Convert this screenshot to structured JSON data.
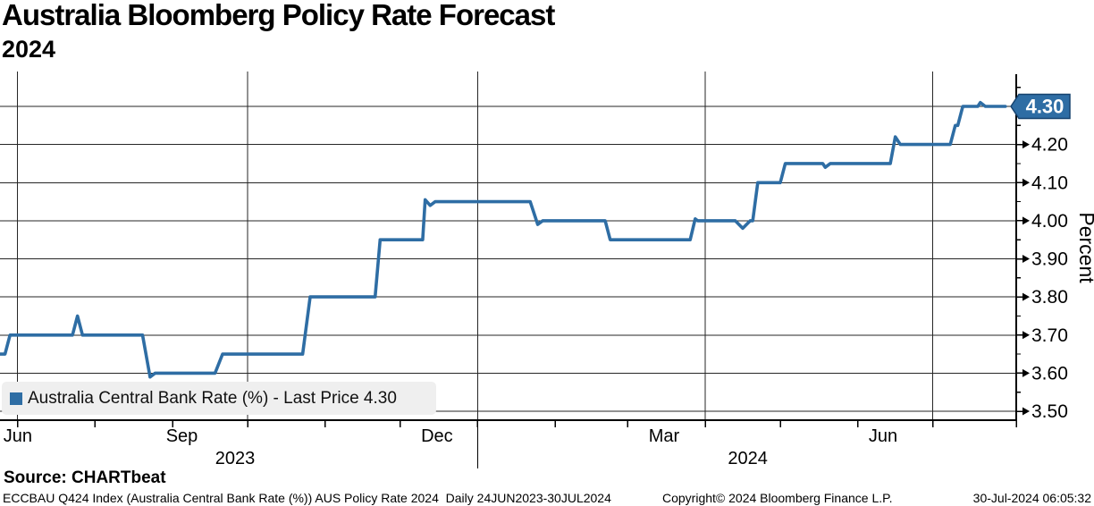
{
  "header": {
    "title": "Australia Bloomberg Policy Rate Forecast",
    "subtitle": "2024"
  },
  "legend": {
    "label": "Australia Central Bank Rate (%) - Last Price 4.30"
  },
  "footer": {
    "source": "Source: CHARTbeat",
    "security_info": "ECCBAU Q424 Index (Australia Central Bank Rate (%)) AUS Policy Rate 2024  Daily 24JUN2023-30JUL2024",
    "copyright": "Copyright© 2024 Bloomberg Finance L.P.",
    "timestamp": "30-Jul-2024 06:05:32"
  },
  "chart_data": {
    "type": "line",
    "title": "Australia Bloomberg Policy Rate Forecast 2024",
    "series_name": "Australia Central Bank Rate (%)",
    "last_price": "4.30",
    "flag_value": 4.3,
    "ylabel": "Percent",
    "line_color": "#2e6da4",
    "flag_border_color": "#16436f",
    "ylim": [
      3.4766,
      4.3915
    ],
    "y_ticks": [
      3.5,
      3.6,
      3.7,
      3.8,
      3.9,
      4.0,
      4.1,
      4.2,
      4.3
    ],
    "y_minor_ticks": [
      3.55,
      3.65,
      3.75,
      3.85,
      3.95,
      4.05,
      4.15,
      4.25,
      4.35
    ],
    "x_range": {
      "start": "2023-06-24",
      "end": "2024-07-30"
    },
    "x_month_ticks": [
      "2023-07-01",
      "2023-08-01",
      "2023-09-01",
      "2023-10-01",
      "2023-11-01",
      "2023-12-01",
      "2024-01-01",
      "2024-02-01",
      "2024-03-01",
      "2024-04-01",
      "2024-05-01",
      "2024-06-01",
      "2024-07-01"
    ],
    "x_gridlines": [
      "2023-07-01",
      "2023-10-01",
      "2024-01-01",
      "2024-04-01",
      "2024-07-01"
    ],
    "x_labels": [
      {
        "text": "Jun",
        "date": "2023-06-25"
      },
      {
        "text": "Sep",
        "date": "2023-08-29"
      },
      {
        "text": "Dec",
        "date": "2023-12-09"
      },
      {
        "text": "Mar",
        "date": "2024-03-09"
      },
      {
        "text": "Jun",
        "date": "2024-06-05"
      }
    ],
    "year_labels": [
      {
        "text": "2023",
        "date": "2023-09-26"
      },
      {
        "text": "2024",
        "date": "2024-04-18"
      }
    ],
    "year_divider": "2024-01-01",
    "points": [
      [
        "2023-06-24",
        3.65
      ],
      [
        "2023-06-26",
        3.65
      ],
      [
        "2023-06-28",
        3.7
      ],
      [
        "2023-07-23",
        3.7
      ],
      [
        "2023-07-25",
        3.75
      ],
      [
        "2023-07-27",
        3.7
      ],
      [
        "2023-08-20",
        3.7
      ],
      [
        "2023-08-23",
        3.59
      ],
      [
        "2023-08-25",
        3.6
      ],
      [
        "2023-09-18",
        3.6
      ],
      [
        "2023-09-21",
        3.65
      ],
      [
        "2023-10-23",
        3.65
      ],
      [
        "2023-10-26",
        3.8
      ],
      [
        "2023-11-21",
        3.8
      ],
      [
        "2023-11-23",
        3.95
      ],
      [
        "2023-12-10",
        3.95
      ],
      [
        "2023-12-11",
        4.055
      ],
      [
        "2023-12-13",
        4.04
      ],
      [
        "2023-12-15",
        4.05
      ],
      [
        "2024-01-22",
        4.05
      ],
      [
        "2024-01-25",
        3.99
      ],
      [
        "2024-01-27",
        4.0
      ],
      [
        "2024-02-21",
        4.0
      ],
      [
        "2024-02-23",
        3.95
      ],
      [
        "2024-03-26",
        3.95
      ],
      [
        "2024-03-28",
        4.005
      ],
      [
        "2024-03-29",
        4.0
      ],
      [
        "2024-04-13",
        4.0
      ],
      [
        "2024-04-16",
        3.98
      ],
      [
        "2024-04-19",
        4.0
      ],
      [
        "2024-04-20",
        4.0
      ],
      [
        "2024-04-22",
        4.1
      ],
      [
        "2024-05-01",
        4.1
      ],
      [
        "2024-05-03",
        4.15
      ],
      [
        "2024-05-18",
        4.15
      ],
      [
        "2024-05-19",
        4.14
      ],
      [
        "2024-05-21",
        4.15
      ],
      [
        "2024-06-14",
        4.15
      ],
      [
        "2024-06-16",
        4.22
      ],
      [
        "2024-06-18",
        4.2
      ],
      [
        "2024-07-08",
        4.2
      ],
      [
        "2024-07-10",
        4.25
      ],
      [
        "2024-07-11",
        4.25
      ],
      [
        "2024-07-13",
        4.3
      ],
      [
        "2024-07-19",
        4.3
      ],
      [
        "2024-07-20",
        4.31
      ],
      [
        "2024-07-22",
        4.3
      ],
      [
        "2024-07-30",
        4.3
      ]
    ]
  }
}
